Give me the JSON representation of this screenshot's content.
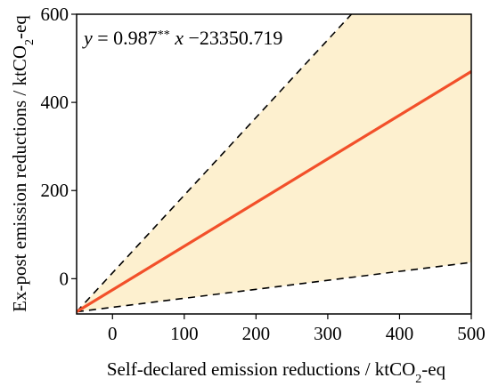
{
  "chart_data": {
    "type": "line",
    "xlabel": "Self-declared emission reductions / ktCO₂-eq",
    "ylabel": "Ex-post emission reductions / ktCO₂-eq",
    "xlabel_parts": {
      "pre": "Self-declared emission reductions / ktCO",
      "sub": "2",
      "post": "-eq"
    },
    "ylabel_parts": {
      "pre": "Ex-post emission reductions / ktCO",
      "sub": "2",
      "post": "-eq"
    },
    "xlim": [
      -50,
      500
    ],
    "ylim": [
      -80,
      600
    ],
    "xticks": [
      0,
      100,
      200,
      300,
      400,
      500
    ],
    "yticks": [
      0,
      200,
      400,
      600
    ],
    "grid": false,
    "annotation": {
      "text": "y = 0.987** x −23350.719",
      "y_var": "y",
      "eq_a": " = 0.987",
      "stars": "**",
      "x_var": " x",
      "eq_b": " −23350.719"
    },
    "fill_color": "#fdf0cf",
    "line_color": "#f2502a",
    "series": [
      {
        "role": "fit",
        "style": "solid",
        "x": [
          -50,
          500
        ],
        "y": [
          -75,
          470
        ]
      },
      {
        "role": "upper-bound",
        "style": "dashed",
        "x": [
          -50,
          333
        ],
        "y": [
          -75,
          600
        ]
      },
      {
        "role": "lower-bound",
        "style": "dashed",
        "x": [
          -50,
          500
        ],
        "y": [
          -75,
          37
        ]
      }
    ]
  }
}
